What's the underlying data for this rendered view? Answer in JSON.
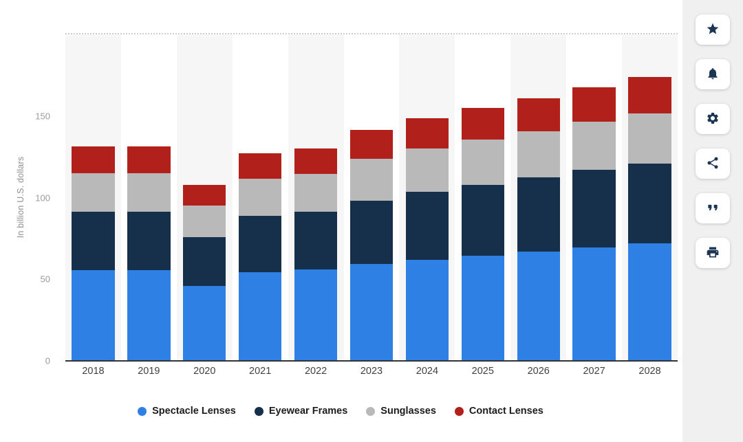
{
  "chart_data": {
    "type": "bar",
    "stacked": true,
    "categories": [
      "2018",
      "2019",
      "2020",
      "2021",
      "2022",
      "2023",
      "2024",
      "2025",
      "2026",
      "2027",
      "2028"
    ],
    "series": [
      {
        "name": "Spectacle Lenses",
        "color": "#2f80e4",
        "values": [
          55.5,
          55.5,
          46,
          54.5,
          56,
          59.5,
          62,
          64.5,
          67,
          69.5,
          72
        ]
      },
      {
        "name": "Eyewear Frames",
        "color": "#16304b",
        "values": [
          36,
          36,
          30,
          34.5,
          35.5,
          38.5,
          41.5,
          43.5,
          45.5,
          47.5,
          49
        ]
      },
      {
        "name": "Sunglasses",
        "color": "#b9b9b9",
        "values": [
          23.5,
          23.5,
          19,
          22.5,
          23,
          26,
          26.5,
          27.5,
          28,
          29.5,
          30.5
        ]
      },
      {
        "name": "Contact Lenses",
        "color": "#b2201c",
        "values": [
          16.5,
          16.5,
          13,
          15.5,
          15.5,
          17.5,
          18.5,
          19.5,
          20.5,
          21,
          22.5
        ]
      }
    ],
    "title": "",
    "xlabel": "",
    "ylabel": "In billion U.S. dollars",
    "ylim": [
      0,
      200
    ],
    "yticks": [
      0,
      50,
      100,
      150
    ],
    "grid": "top-dotted-only",
    "legend_position": "bottom",
    "background_stripes": "alternating-columns"
  },
  "toolbar": {
    "buttons": [
      {
        "id": "favorite",
        "icon": "star-icon"
      },
      {
        "id": "notifications",
        "icon": "bell-icon"
      },
      {
        "id": "settings",
        "icon": "gear-icon"
      },
      {
        "id": "share",
        "icon": "share-icon"
      },
      {
        "id": "citation",
        "icon": "quote-icon"
      },
      {
        "id": "print",
        "icon": "printer-icon"
      }
    ]
  },
  "colors": {
    "spectacle_lenses": "#2f80e4",
    "eyewear_frames": "#16304b",
    "sunglasses": "#b9b9b9",
    "contact_lenses": "#b2201c",
    "icon": "#1b3554",
    "side_panel": "#f0f0f0",
    "stripe": "#f6f6f6"
  }
}
